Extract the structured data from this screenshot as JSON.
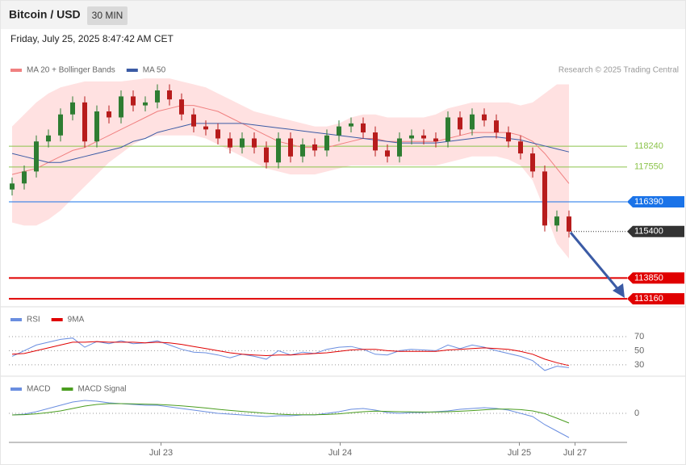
{
  "header": {
    "title": "Bitcoin / USD",
    "interval": "30 MIN",
    "timestamp": "Friday, July 25, 2025 8:47:42 AM CET"
  },
  "chart_data": [
    {
      "type": "candlestick",
      "credit": "Research © 2025 Trading Central",
      "xlim": [
        -0.5,
        50.5
      ],
      "xticks": [
        {
          "value": 12.3,
          "label": "Jul 23"
        },
        {
          "value": 27.1,
          "label": "Jul 24"
        },
        {
          "value": 41.9,
          "label": "Jul 25"
        },
        {
          "value": 46.5,
          "label": "Jul 27"
        }
      ],
      "ylim": [
        112920,
        120530
      ],
      "up_color": "#2e7d32",
      "down_color": "#b71c1c",
      "candles": {
        "open": [
          116800,
          117000,
          117400,
          118400,
          118600,
          119300,
          119700,
          118400,
          119400,
          119200,
          119900,
          119600,
          119700,
          120100,
          119800,
          119300,
          118900,
          118800,
          118500,
          118200,
          118500,
          118200,
          117700,
          118500,
          117900,
          118300,
          118100,
          118600,
          118900,
          119000,
          118700,
          118100,
          117900,
          118500,
          118600,
          118500,
          118400,
          119200,
          118800,
          119300,
          119100,
          118700,
          118400,
          118000,
          117400,
          115600,
          115900
        ],
        "high": [
          117200,
          117600,
          118600,
          118800,
          119500,
          119900,
          119900,
          119600,
          119600,
          120100,
          120100,
          119900,
          120300,
          120300,
          120000,
          119500,
          119100,
          119000,
          118700,
          118700,
          118700,
          118400,
          118700,
          118700,
          118500,
          118500,
          118800,
          119100,
          119200,
          119200,
          118900,
          118300,
          118700,
          118800,
          118800,
          118700,
          119400,
          119400,
          119500,
          119500,
          119300,
          118900,
          118600,
          118200,
          117600,
          116100,
          116100
        ],
        "low": [
          116600,
          116800,
          117200,
          118200,
          118400,
          119100,
          118200,
          118200,
          119000,
          119000,
          119400,
          119400,
          119500,
          119600,
          119100,
          118700,
          118600,
          118300,
          118000,
          118000,
          118000,
          117500,
          117500,
          117700,
          117700,
          117900,
          117900,
          118400,
          118700,
          118500,
          117900,
          117700,
          117700,
          118300,
          118300,
          118200,
          118200,
          118600,
          118600,
          118900,
          118500,
          118200,
          117800,
          117200,
          115400,
          115400,
          115200
        ],
        "close": [
          117000,
          117400,
          118400,
          118600,
          119300,
          119700,
          118400,
          119400,
          119200,
          119900,
          119600,
          119700,
          120100,
          119800,
          119300,
          118900,
          118800,
          118500,
          118200,
          118500,
          118200,
          117700,
          118500,
          117900,
          118300,
          118100,
          118600,
          118900,
          119000,
          118700,
          118100,
          117900,
          118500,
          118600,
          118500,
          118400,
          119200,
          118800,
          119300,
          119100,
          118700,
          118400,
          118000,
          117400,
          115600,
          115900,
          115400
        ]
      },
      "series": [
        {
          "name": "MA 20 + Bollinger Bands",
          "color": "#f08080",
          "band_color": "#ffd9d9",
          "values": [
            117300,
            117400,
            117500,
            117700,
            117900,
            118100,
            118200,
            118400,
            118600,
            118800,
            119000,
            119200,
            119400,
            119500,
            119600,
            119600,
            119500,
            119400,
            119200,
            119000,
            118800,
            118600,
            118400,
            118300,
            118200,
            118200,
            118200,
            118300,
            118400,
            118500,
            118500,
            118400,
            118400,
            118400,
            118400,
            118400,
            118500,
            118600,
            118700,
            118700,
            118700,
            118700,
            118600,
            118400,
            118000,
            117500,
            117000
          ],
          "upper": [
            118900,
            119300,
            119700,
            120000,
            120200,
            120300,
            120400,
            120400,
            120400,
            120400,
            120450,
            120500,
            120500,
            120500,
            120400,
            120300,
            120200,
            120000,
            119800,
            119600,
            119400,
            119300,
            119200,
            119100,
            119000,
            118900,
            118900,
            119000,
            119200,
            119300,
            119300,
            119200,
            119200,
            119200,
            119200,
            119300,
            119500,
            119600,
            119700,
            119700,
            119700,
            119700,
            119600,
            119700,
            120000,
            120300,
            120300
          ],
          "lower": [
            115700,
            115600,
            115600,
            115800,
            116100,
            116500,
            116900,
            117300,
            117700,
            118000,
            118300,
            118500,
            118600,
            118600,
            118600,
            118600,
            118500,
            118300,
            118100,
            117900,
            117700,
            117500,
            117400,
            117300,
            117300,
            117300,
            117400,
            117500,
            117600,
            117600,
            117600,
            117600,
            117600,
            117600,
            117600,
            117600,
            117700,
            117800,
            117900,
            117900,
            117900,
            117800,
            117600,
            117100,
            116100,
            115000,
            114500
          ]
        },
        {
          "name": "MA 50",
          "color": "#3b5ba5",
          "values": [
            118000,
            117900,
            117800,
            117700,
            117700,
            117800,
            117900,
            118000,
            118100,
            118200,
            118400,
            118500,
            118700,
            118800,
            118900,
            119000,
            119000,
            119000,
            119000,
            119000,
            118950,
            118900,
            118850,
            118800,
            118750,
            118700,
            118650,
            118600,
            118550,
            118500,
            118450,
            118400,
            118350,
            118350,
            118350,
            118350,
            118400,
            118450,
            118500,
            118550,
            118550,
            118500,
            118450,
            118350,
            118250,
            118150,
            118050
          ]
        }
      ],
      "levels": [
        {
          "value": 118240,
          "color": "#8bc34a",
          "style": "thin"
        },
        {
          "value": 117550,
          "color": "#8bc34a",
          "style": "thin"
        },
        {
          "value": 116390,
          "color": "#1a73e8",
          "style": "box"
        },
        {
          "value": 115400,
          "color": "#333333",
          "style": "dotted"
        },
        {
          "value": 113850,
          "color": "#e00000",
          "style": "box"
        },
        {
          "value": 113160,
          "color": "#e00000",
          "style": "box"
        }
      ]
    },
    {
      "type": "line",
      "ylim": [
        15,
        110
      ],
      "yticks": [
        30,
        50,
        70
      ],
      "series": [
        {
          "name": "RSI",
          "color": "#6a8ee0",
          "values": [
            42,
            50,
            58,
            62,
            66,
            68,
            55,
            63,
            60,
            64,
            60,
            61,
            64,
            58,
            52,
            48,
            47,
            44,
            40,
            45,
            42,
            38,
            50,
            44,
            48,
            46,
            52,
            55,
            56,
            52,
            45,
            44,
            50,
            52,
            51,
            50,
            58,
            53,
            58,
            55,
            50,
            46,
            42,
            36,
            22,
            28,
            26
          ]
        },
        {
          "name": "9MA",
          "color": "#e00000",
          "values": [
            45,
            46,
            50,
            54,
            58,
            62,
            62,
            63,
            62,
            62,
            62,
            61,
            62,
            61,
            59,
            56,
            53,
            50,
            47,
            45,
            44,
            43,
            44,
            44,
            45,
            46,
            47,
            49,
            51,
            52,
            52,
            50,
            49,
            49,
            49,
            49,
            51,
            52,
            53,
            54,
            53,
            52,
            49,
            45,
            38,
            33,
            29
          ]
        }
      ]
    },
    {
      "type": "line",
      "ylim": [
        -1700,
        1700
      ],
      "yticks": [
        0
      ],
      "series": [
        {
          "name": "MACD",
          "color": "#6a8ee0",
          "values": [
            -100,
            -50,
            100,
            300,
            500,
            700,
            800,
            750,
            650,
            600,
            550,
            500,
            500,
            400,
            300,
            200,
            100,
            0,
            -50,
            -100,
            -150,
            -200,
            -150,
            -150,
            -100,
            -100,
            0,
            100,
            250,
            300,
            200,
            50,
            0,
            50,
            50,
            100,
            150,
            250,
            300,
            350,
            300,
            200,
            0,
            -200,
            -700,
            -1100,
            -1500
          ]
        },
        {
          "name": "MACD Signal",
          "color": "#4a9d1f",
          "values": [
            -100,
            -80,
            -30,
            50,
            150,
            300,
            450,
            550,
            600,
            600,
            590,
            570,
            550,
            510,
            460,
            400,
            330,
            250,
            180,
            120,
            60,
            0,
            -50,
            -80,
            -90,
            -90,
            -70,
            -30,
            40,
            100,
            140,
            120,
            100,
            90,
            80,
            80,
            100,
            130,
            170,
            220,
            260,
            260,
            230,
            150,
            -20,
            -300,
            -600
          ]
        }
      ]
    }
  ]
}
